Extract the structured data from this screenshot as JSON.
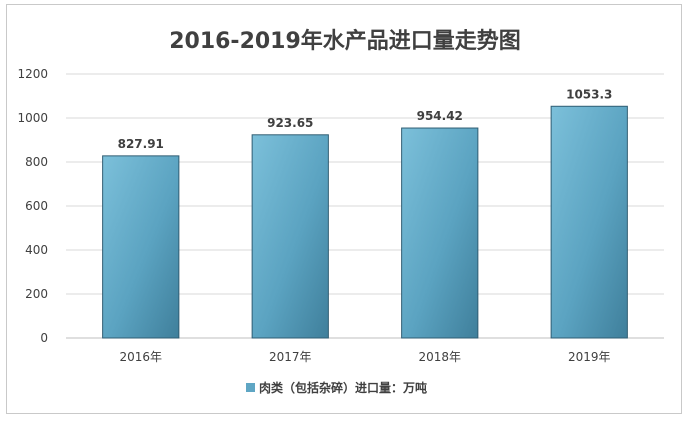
{
  "chart_data": {
    "type": "bar",
    "title": "2016-2019年水产品进口量走势图",
    "categories": [
      "2016年",
      "2017年",
      "2018年",
      "2019年"
    ],
    "series": [
      {
        "name": "肉类（包括杂碎）进口量：万吨",
        "values": [
          827.91,
          923.65,
          954.42,
          1053.3
        ]
      }
    ],
    "data_labels": [
      "827.91",
      "923.65",
      "954.42",
      "1053.3"
    ],
    "ylim": [
      0,
      1200
    ],
    "yticks": [
      0,
      200,
      400,
      600,
      800,
      1000,
      1200
    ],
    "grid": true,
    "legend_position": "bottom",
    "colors": {
      "bar": "#5fa6c4",
      "bar_edge": "#2f5d73",
      "grid": "#d9d9d9",
      "text": "#404040"
    }
  }
}
